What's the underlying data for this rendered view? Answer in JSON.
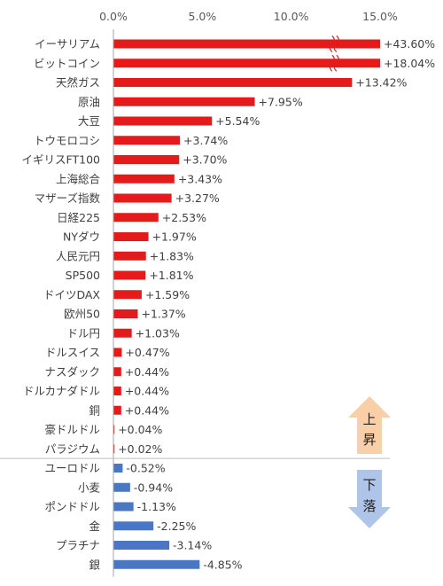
{
  "chart_data": {
    "type": "bar",
    "orientation": "horizontal",
    "title": "",
    "xlabel": "",
    "ylabel": "",
    "xlim": [
      0,
      15
    ],
    "x_ticks": [
      "0.0%",
      "5.0%",
      "10.0%",
      "15.0%"
    ],
    "grid": false,
    "legend": "none",
    "axis_break_after": 15,
    "categories": [
      "イーサリアム",
      "ビットコイン",
      "天然ガス",
      "原油",
      "大豆",
      "トウモロコシ",
      "イギリスFT100",
      "上海総合",
      "マザーズ指数",
      "日経225",
      "NYダウ",
      "人民元円",
      "SP500",
      "ドイツDAX",
      "欧州50",
      "ドル円",
      "ドルスイス",
      "ナスダック",
      "ドルカナダドル",
      "銅",
      "豪ドルドル",
      "パラジウム",
      "ユーロドル",
      "小麦",
      "ポンドドル",
      "金",
      "プラチナ",
      "銀"
    ],
    "values": [
      43.6,
      18.04,
      13.42,
      7.95,
      5.54,
      3.74,
      3.7,
      3.43,
      3.27,
      2.53,
      1.97,
      1.83,
      1.81,
      1.59,
      1.37,
      1.03,
      0.47,
      0.44,
      0.44,
      0.44,
      0.04,
      0.02,
      -0.52,
      -0.94,
      -1.13,
      -2.25,
      -3.14,
      -4.85
    ],
    "data_labels": [
      "+43.60%",
      "+18.04%",
      "+13.42%",
      "+7.95%",
      "+5.54%",
      "+3.74%",
      "+3.70%",
      "+3.43%",
      "+3.27%",
      "+2.53%",
      "+1.97%",
      "+1.83%",
      "+1.81%",
      "+1.59%",
      "+1.37%",
      "+1.03%",
      "+0.47%",
      "+0.44%",
      "+0.44%",
      "+0.44%",
      "+0.04%",
      "+0.02%",
      "-0.52%",
      "-0.94%",
      "-1.13%",
      "-2.25%",
      "-3.14%",
      "-4.85%"
    ],
    "note": "negative values drawn as magnitude in blue"
  },
  "colors": {
    "up": "#e51a1a",
    "down": "#4a77c4",
    "up_arrow": "#f9cfa8",
    "down_arrow": "#aec4e8",
    "axis": "#a6a6a6"
  },
  "arrows": {
    "up": {
      "chars": [
        "上",
        "昇"
      ]
    },
    "down": {
      "chars": [
        "下",
        "落"
      ]
    }
  }
}
